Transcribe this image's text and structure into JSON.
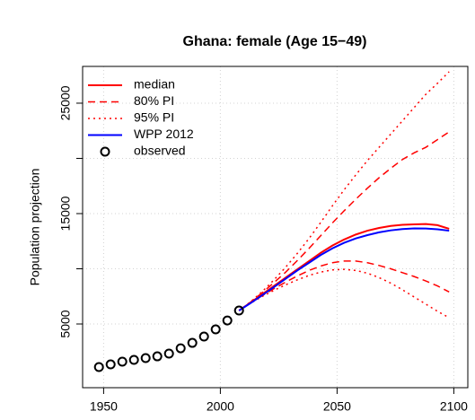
{
  "chart_data": {
    "type": "line",
    "title": "Ghana: female (Age 15−49)",
    "ylabel": "Population projection",
    "xlim": [
      1941,
      2106
    ],
    "ylim": [
      -770,
      28330
    ],
    "xticks": [
      1950,
      2000,
      2050,
      2100
    ],
    "yticks": [
      5000,
      {
        "value": 10000,
        "label": null
      },
      15000,
      {
        "value": 20000,
        "label": null
      },
      25000
    ],
    "grid": true,
    "legend": "top-left",
    "series": [
      {
        "name": "median",
        "color": "#ff0000",
        "dash": "solid",
        "width": 2,
        "x": [
          2008,
          2013,
          2018,
          2023,
          2028,
          2033,
          2038,
          2043,
          2048,
          2053,
          2058,
          2063,
          2068,
          2073,
          2078,
          2083,
          2088,
          2093,
          2098
        ],
        "values": [
          6220,
          6950,
          7700,
          8450,
          9200,
          9950,
          10700,
          11450,
          12100,
          12650,
          13100,
          13450,
          13700,
          13880,
          13980,
          14020,
          14050,
          13950,
          13620
        ]
      },
      {
        "name": "80% PI",
        "color": "#ff0000",
        "dash": "dashed",
        "width": 1.5,
        "x": [
          2008,
          2013,
          2018,
          2023,
          2028,
          2033,
          2038,
          2043,
          2048,
          2053,
          2058,
          2063,
          2068,
          2073,
          2078,
          2083,
          2088,
          2093,
          2098
        ],
        "values": [
          6220,
          6990,
          7850,
          8750,
          9700,
          10750,
          11850,
          13000,
          14150,
          15250,
          16300,
          17300,
          18250,
          19100,
          19900,
          20500,
          21000,
          21700,
          22400
        ]
      },
      {
        "color": "#ff0000",
        "dash": "dashed",
        "width": 1.5,
        "x": [
          2008,
          2013,
          2018,
          2023,
          2028,
          2033,
          2038,
          2043,
          2048,
          2053,
          2058,
          2063,
          2068,
          2073,
          2078,
          2083,
          2088,
          2093,
          2098
        ],
        "values": [
          6220,
          6910,
          7570,
          8200,
          8800,
          9350,
          9850,
          10250,
          10550,
          10700,
          10700,
          10550,
          10300,
          10000,
          9650,
          9300,
          8900,
          8450,
          7900
        ]
      },
      {
        "name": "95% PI",
        "color": "#ff0000",
        "dash": "dotted",
        "width": 1.5,
        "x": [
          2008,
          2013,
          2018,
          2023,
          2028,
          2033,
          2038,
          2043,
          2048,
          2053,
          2058,
          2063,
          2068,
          2073,
          2078,
          2083,
          2088,
          2093,
          2098
        ],
        "values": [
          6220,
          7020,
          7950,
          9000,
          10150,
          11400,
          12750,
          14200,
          15700,
          17150,
          18500,
          19800,
          21000,
          22200,
          23400,
          24600,
          25800,
          26800,
          27850
        ]
      },
      {
        "color": "#ff0000",
        "dash": "dotted",
        "width": 1.5,
        "x": [
          2008,
          2013,
          2018,
          2023,
          2028,
          2033,
          2038,
          2043,
          2048,
          2053,
          2058,
          2063,
          2068,
          2073,
          2078,
          2083,
          2088,
          2093,
          2098
        ],
        "values": [
          6220,
          6890,
          7500,
          8050,
          8550,
          9000,
          9400,
          9700,
          9900,
          9950,
          9850,
          9600,
          9200,
          8700,
          8100,
          7450,
          6800,
          6150,
          5570
        ]
      },
      {
        "name": "WPP 2012",
        "color": "#0000ff",
        "dash": "solid",
        "width": 2,
        "x": [
          2008,
          2013,
          2018,
          2023,
          2028,
          2033,
          2038,
          2043,
          2048,
          2053,
          2058,
          2063,
          2068,
          2073,
          2078,
          2083,
          2088,
          2093,
          2098
        ],
        "values": [
          6220,
          6900,
          7620,
          8350,
          9100,
          9850,
          10550,
          11250,
          11850,
          12350,
          12750,
          13050,
          13300,
          13480,
          13600,
          13660,
          13650,
          13580,
          13450
        ]
      },
      {
        "name": "observed",
        "color": "#000000",
        "marker": "circle",
        "x": [
          1948,
          1953,
          1958,
          1963,
          1968,
          1973,
          1978,
          1983,
          1988,
          1993,
          1998,
          2003,
          2008
        ],
        "values": [
          1100,
          1340,
          1585,
          1750,
          1910,
          2070,
          2320,
          2800,
          3290,
          3860,
          4510,
          5320,
          6220
        ]
      }
    ]
  }
}
